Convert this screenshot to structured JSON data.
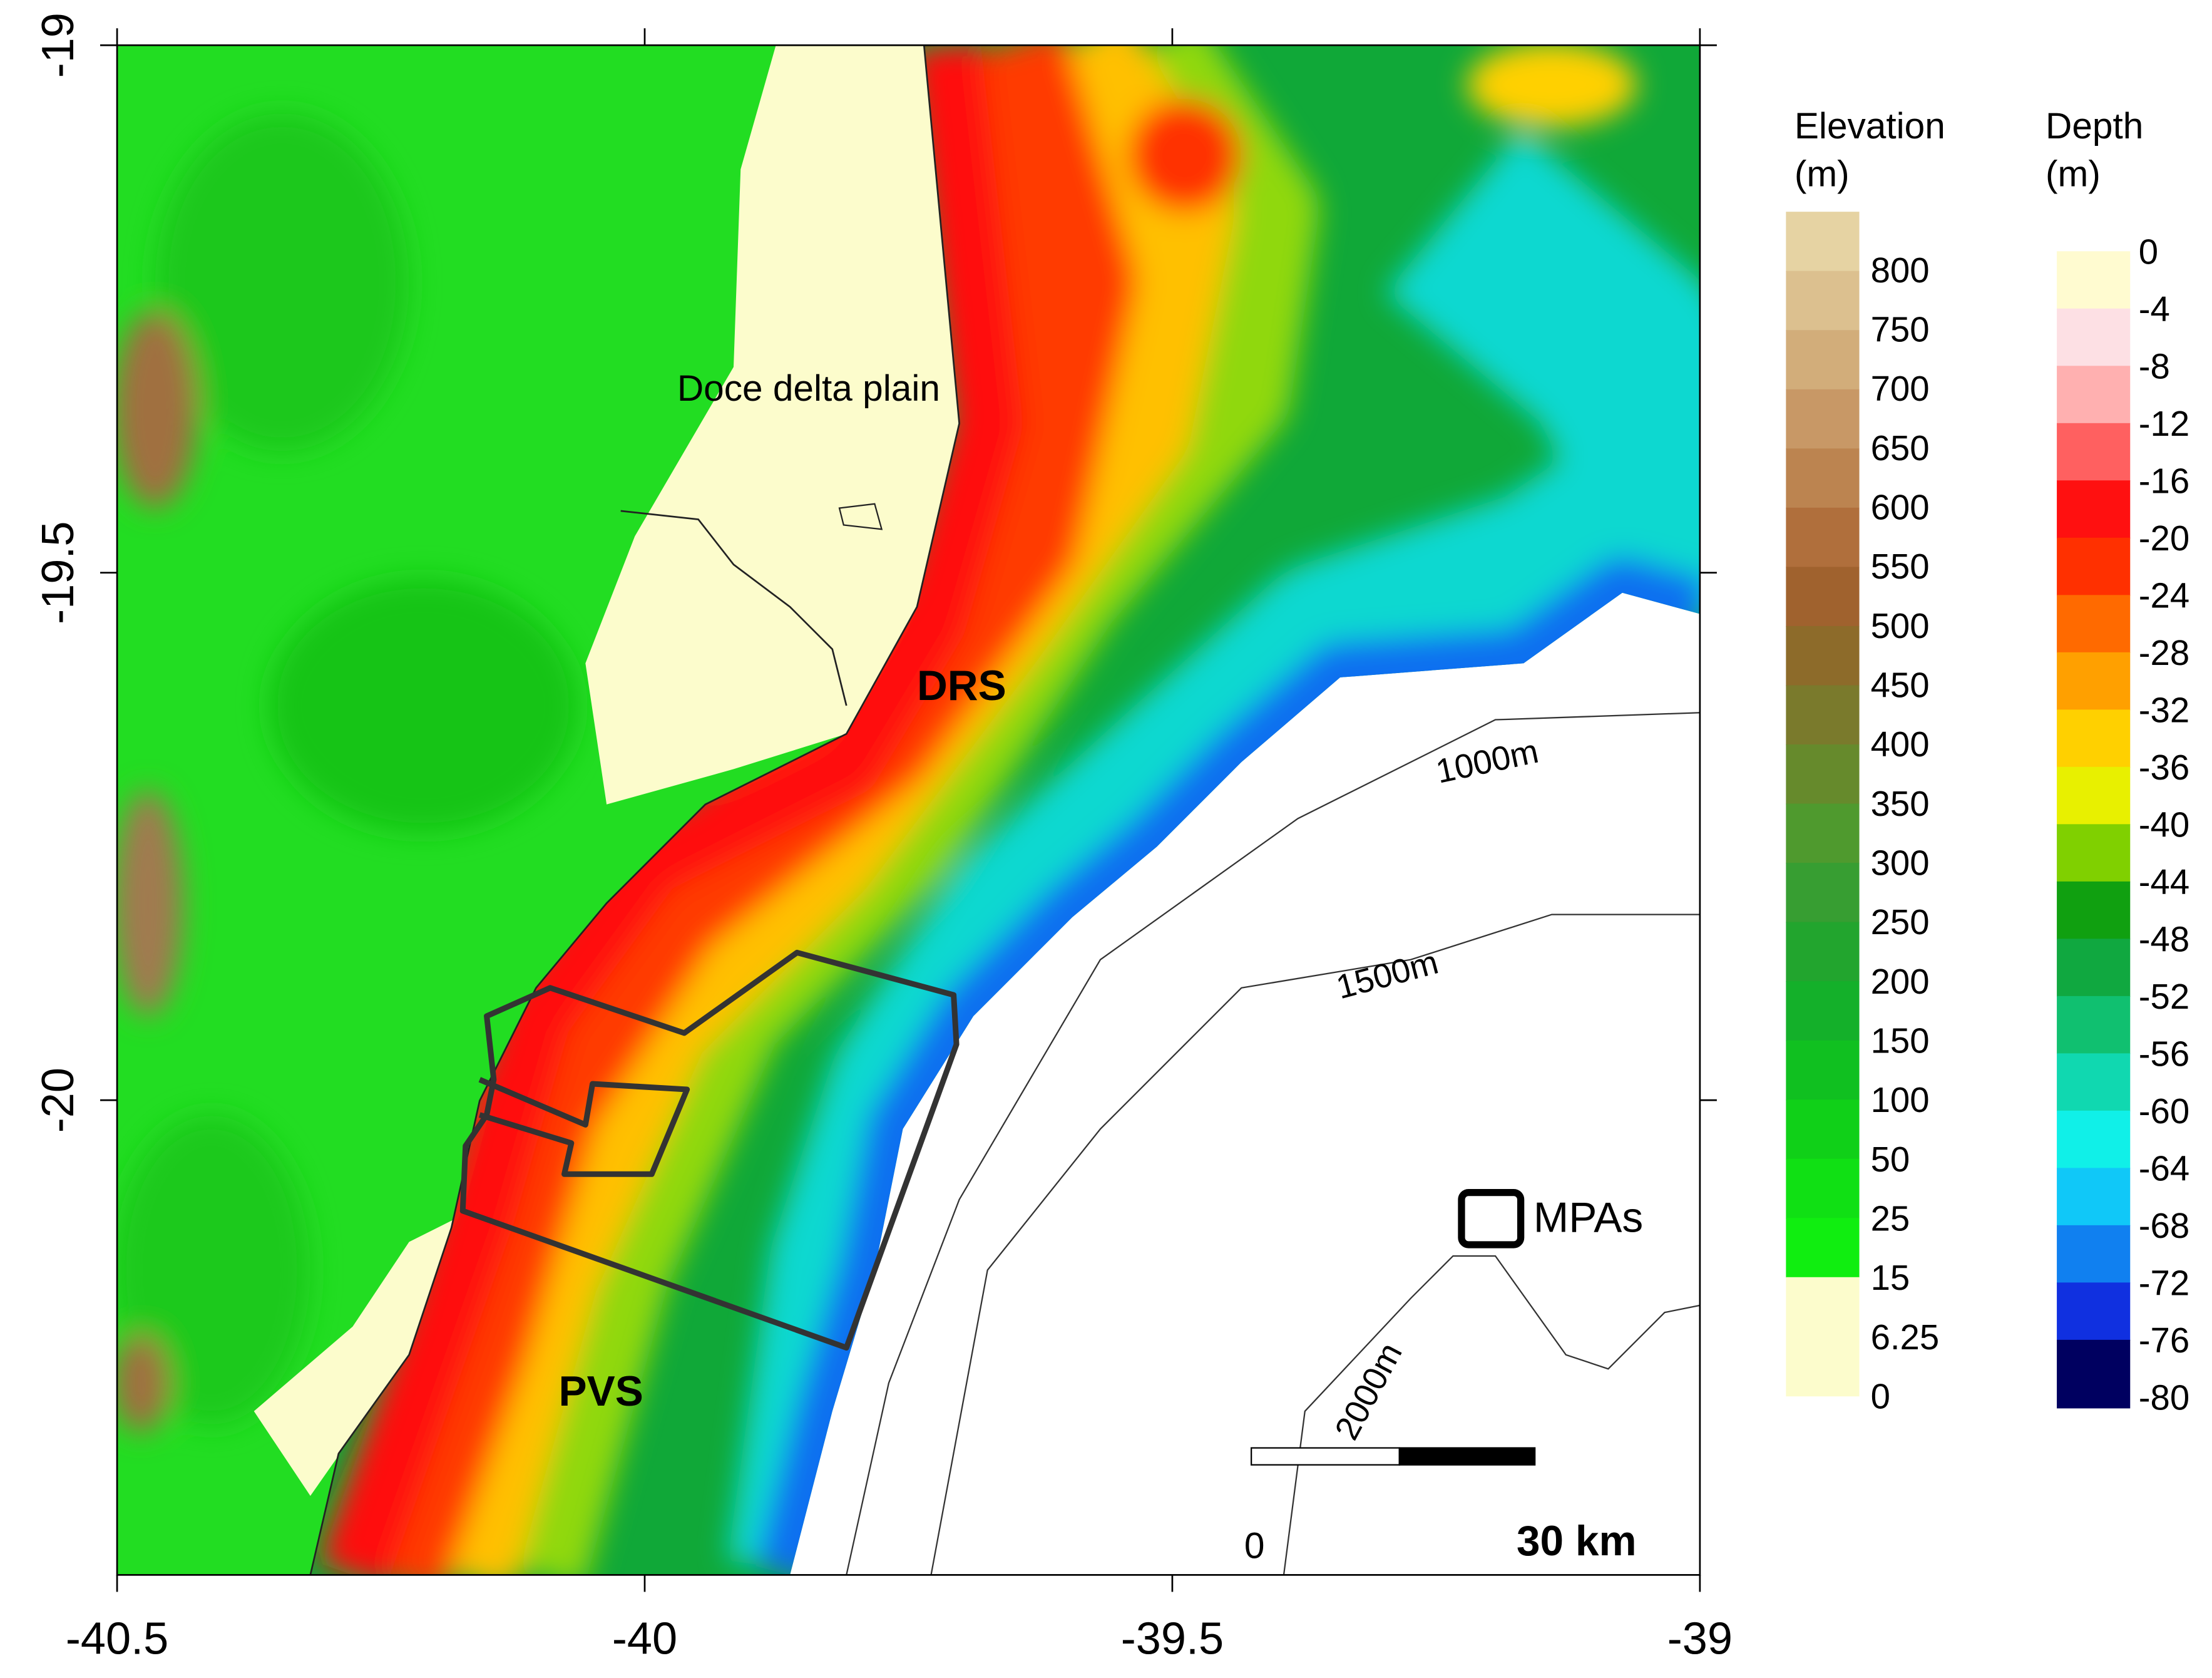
{
  "map": {
    "labels": {
      "delta": "Doce delta plain",
      "drs": "DRS",
      "pvs": "PVS"
    },
    "contours": [
      "1000m",
      "1500m",
      "2000m"
    ],
    "axes": {
      "xlim": [
        -40.5,
        -39
      ],
      "ylim": [
        -20.45,
        -19
      ],
      "xticks": [
        -40.5,
        -40,
        -39.5,
        -39
      ],
      "yticks": [
        -19,
        -19.5,
        -20
      ]
    },
    "scale_bar": {
      "start": "0",
      "end": "30 km"
    },
    "legend": {
      "mpas": "MPAs"
    },
    "elevation": {
      "title": [
        "Elevation",
        "(m)"
      ],
      "ticks": [
        800,
        750,
        700,
        650,
        600,
        550,
        500,
        450,
        400,
        350,
        300,
        250,
        200,
        150,
        100,
        50,
        25,
        15,
        6.25,
        0
      ],
      "colors": [
        "#e6d3a3",
        "#dcc08f",
        "#d2ad7a",
        "#c89866",
        "#bc8450",
        "#b06f3c",
        "#a0622e",
        "#8d6b2a",
        "#7a7a2c",
        "#668a2c",
        "#4f9a2e",
        "#379e32",
        "#22a52e",
        "#14b02a",
        "#10c020",
        "#10d018",
        "#10e014",
        "#10ee10",
        "#fcfccc"
      ]
    },
    "depth": {
      "title": [
        "Depth",
        "(m)"
      ],
      "ticks": [
        0,
        -4,
        -8,
        -12,
        -16,
        -20,
        -24,
        -28,
        -32,
        -36,
        -40,
        -44,
        -48,
        -52,
        -56,
        -60,
        -64,
        -68,
        -72,
        -76,
        -80
      ],
      "colors": [
        "#fffbd0",
        "#fde0e4",
        "#ffb0b0",
        "#ff6060",
        "#ff1010",
        "#ff3000",
        "#ff6a00",
        "#ffa000",
        "#ffd000",
        "#e8f000",
        "#80d000",
        "#10a010",
        "#10a840",
        "#10c070",
        "#10d8b0",
        "#10f0e8",
        "#10c8f8",
        "#1080f0",
        "#1030e0",
        "#000060"
      ]
    }
  }
}
